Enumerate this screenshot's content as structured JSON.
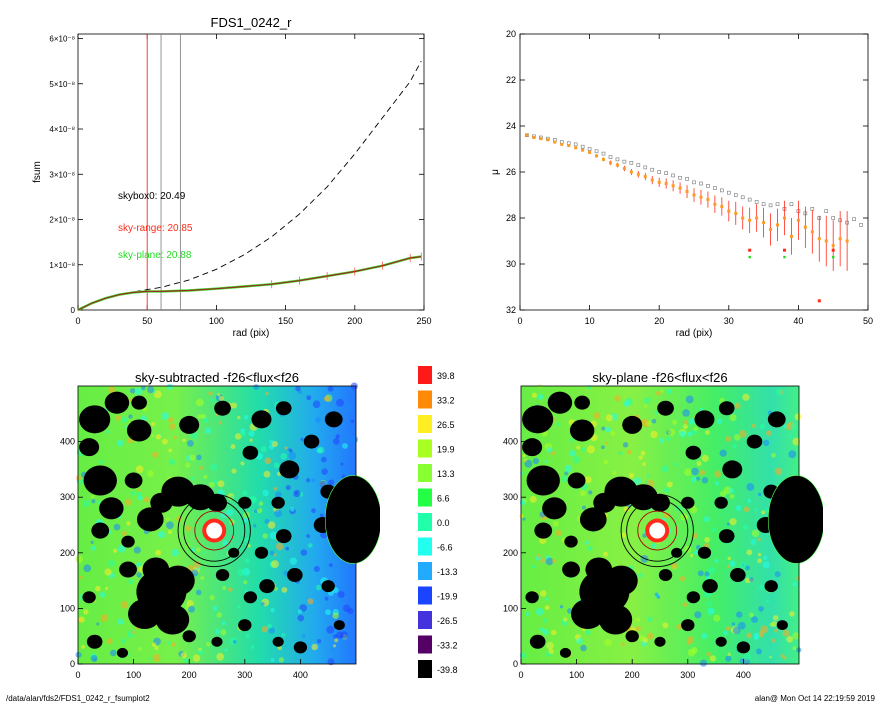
{
  "page": {
    "footer_left": "/data/alan/fds2/FDS1_0242_r_fsumplot2",
    "footer_right": "alan@  Mon Oct 14 22:19:59 2019"
  },
  "colors": {
    "red": "#ff2a1a",
    "green": "#22dd22",
    "gray": "#888888",
    "orange": "#ff9a22"
  },
  "chart_data": [
    {
      "type": "line",
      "title": "FDS1_0242_r",
      "xlabel": "rad (pix)",
      "ylabel": "fsum",
      "xlim": [
        0,
        250
      ],
      "ylim": [
        0,
        6.1e-08
      ],
      "xticks": [
        "0",
        "50",
        "100",
        "150",
        "200",
        "250"
      ],
      "yticks": [
        "0",
        "1×10⁻⁸",
        "2×10⁻⁸",
        "3×10⁻⁸",
        "4×10⁻⁸",
        "5×10⁻⁸",
        "6×10⁻⁸"
      ],
      "vlines": [
        {
          "x": 50,
          "color": "red"
        },
        {
          "x": 60,
          "color": "gray"
        },
        {
          "x": 74,
          "color": "gray"
        }
      ],
      "annotations": [
        {
          "text": "skybox0: 20.49",
          "color": "black"
        },
        {
          "text": "sky-range: 20.85",
          "color": "red"
        },
        {
          "text": "sky-plane: 20.88",
          "color": "green"
        }
      ],
      "series": [
        {
          "style": "dashed",
          "x": [
            0,
            10,
            20,
            30,
            40,
            50,
            60,
            80,
            100,
            120,
            140,
            160,
            180,
            200,
            220,
            240,
            248
          ],
          "y": [
            0,
            1.5e-09,
            2.6e-09,
            3.4e-09,
            4e-09,
            4.5e-09,
            5e-09,
            6.6e-09,
            9e-09,
            1.22e-08,
            1.62e-08,
            2.12e-08,
            2.72e-08,
            3.45e-08,
            4.25e-08,
            5.05e-08,
            5.5e-08
          ]
        },
        {
          "style": "solid",
          "x": [
            0,
            10,
            20,
            30,
            40,
            50,
            60,
            80,
            100,
            120,
            140,
            160,
            180,
            200,
            220,
            240,
            248
          ],
          "y": [
            0,
            1.5e-09,
            2.6e-09,
            3.4e-09,
            3.9e-09,
            4.1e-09,
            4.1e-09,
            4.3e-09,
            4.7e-09,
            5.2e-09,
            5.7e-09,
            6.5e-09,
            7.5e-09,
            8.5e-09,
            9.8e-09,
            1.15e-08,
            1.18e-08
          ]
        }
      ]
    },
    {
      "type": "scatter",
      "xlabel": "rad (pix)",
      "ylabel": "μ",
      "xlim": [
        0,
        50
      ],
      "ylim": [
        32,
        20
      ],
      "xticks": [
        "0",
        "10",
        "20",
        "30",
        "40",
        "50"
      ],
      "yticks": [
        "20",
        "22",
        "24",
        "26",
        "28",
        "30",
        "32"
      ],
      "series": [
        {
          "marker": "gray-open-square",
          "x": [
            1,
            2,
            3,
            4,
            5,
            6,
            7,
            8,
            9,
            10,
            11,
            12,
            13,
            14,
            15,
            16,
            17,
            18,
            19,
            20,
            21,
            22,
            23,
            24,
            25,
            26,
            27,
            28,
            29,
            30,
            31,
            32,
            33,
            34,
            35,
            36,
            37,
            38,
            39,
            40,
            41,
            42,
            43,
            44,
            45,
            46,
            47,
            48,
            49
          ],
          "y": [
            24.4,
            24.45,
            24.5,
            24.55,
            24.6,
            24.7,
            24.75,
            24.8,
            24.9,
            25.0,
            25.1,
            25.2,
            25.35,
            25.45,
            25.55,
            25.6,
            25.7,
            25.8,
            25.9,
            26.0,
            26.05,
            26.15,
            26.25,
            26.3,
            26.45,
            26.5,
            26.6,
            26.7,
            26.8,
            26.9,
            27.0,
            27.1,
            27.2,
            27.3,
            27.4,
            27.45,
            27.4,
            27.6,
            27.4,
            27.7,
            27.8,
            27.6,
            28.0,
            27.7,
            28.0,
            28.1,
            28.2,
            28.05,
            28.3
          ]
        },
        {
          "marker": "orange-point-with-red-error",
          "x": [
            1,
            2,
            3,
            4,
            5,
            6,
            7,
            8,
            9,
            10,
            11,
            12,
            13,
            14,
            15,
            16,
            17,
            18,
            19,
            20,
            21,
            22,
            23,
            24,
            25,
            26,
            27,
            28,
            29,
            30,
            31,
            32,
            33,
            34,
            35,
            36,
            37,
            38,
            39,
            40,
            41,
            42,
            43,
            44,
            45,
            46,
            47
          ],
          "y": [
            24.4,
            24.5,
            24.55,
            24.6,
            24.7,
            24.8,
            24.85,
            24.95,
            25.05,
            25.15,
            25.3,
            25.45,
            25.6,
            25.7,
            25.85,
            26.0,
            26.1,
            26.2,
            26.35,
            26.45,
            26.5,
            26.6,
            26.7,
            26.85,
            27.0,
            27.1,
            27.2,
            27.4,
            27.5,
            27.7,
            27.8,
            28.0,
            28.1,
            28.0,
            28.2,
            28.5,
            28.3,
            28.0,
            28.8,
            28.1,
            28.4,
            28.6,
            28.9,
            29.0,
            29.2,
            28.9,
            29.0
          ],
          "err": [
            0.03,
            0.03,
            0.03,
            0.04,
            0.04,
            0.04,
            0.05,
            0.05,
            0.06,
            0.06,
            0.07,
            0.08,
            0.1,
            0.1,
            0.12,
            0.13,
            0.14,
            0.16,
            0.18,
            0.2,
            0.22,
            0.24,
            0.25,
            0.28,
            0.3,
            0.32,
            0.35,
            0.38,
            0.4,
            0.45,
            0.5,
            0.5,
            0.55,
            0.6,
            0.65,
            0.7,
            0.7,
            0.75,
            0.8,
            0.85,
            0.9,
            0.95,
            1.0,
            1.1,
            1.1,
            1.2,
            1.3
          ]
        },
        {
          "marker": "red-outlier",
          "x": [
            33,
            38,
            43,
            45
          ],
          "y": [
            29.4,
            29.4,
            31.6,
            29.4
          ]
        },
        {
          "marker": "green-outlier",
          "x": [
            33,
            38,
            45
          ],
          "y": [
            29.7,
            29.7,
            29.7
          ]
        }
      ]
    },
    {
      "type": "heatmap",
      "title": "sky-subtracted -f26<flux<f26",
      "xlim": [
        0,
        500
      ],
      "ylim": [
        0,
        500
      ],
      "xticks": [
        "0",
        "100",
        "200",
        "300",
        "400"
      ],
      "yticks": [
        "0",
        "100",
        "200",
        "300",
        "400"
      ],
      "center": [
        245,
        240
      ],
      "ring_radii": [
        35,
        55,
        65
      ]
    },
    {
      "type": "heatmap",
      "title": "sky-plane -f26<flux<f26",
      "xlim": [
        0,
        500
      ],
      "ylim": [
        0,
        500
      ],
      "xticks": [
        "0",
        "100",
        "200",
        "300",
        "400"
      ],
      "yticks": [
        "0",
        "100",
        "200",
        "300",
        "400"
      ],
      "center": [
        245,
        240
      ],
      "ring_radii": [
        35,
        55,
        65
      ]
    }
  ],
  "colorbar": {
    "labels": [
      "39.8",
      "33.2",
      "26.5",
      "19.9",
      "13.3",
      "6.6",
      "0.0",
      "-6.6",
      "-13.3",
      "-19.9",
      "-26.5",
      "-33.2",
      "-39.8"
    ],
    "colors": [
      "#ff1a1a",
      "#ff8a0a",
      "#ffee22",
      "#aaff22",
      "#88ff33",
      "#22ff44",
      "#22ffaa",
      "#22ffee",
      "#22aaff",
      "#1a44ff",
      "#4433dd",
      "#550066",
      "#000000"
    ]
  }
}
